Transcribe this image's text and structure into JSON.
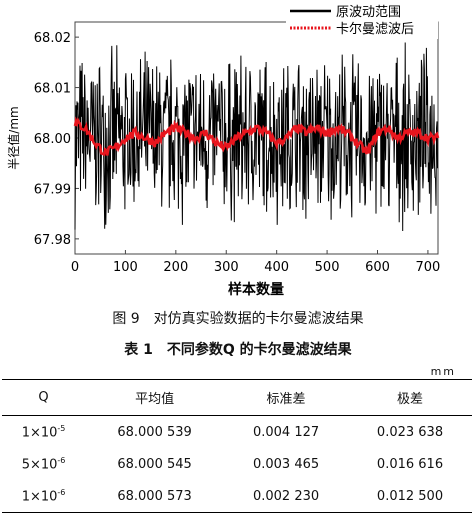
{
  "chart_data": {
    "type": "line",
    "xlabel": "样本数量",
    "ylabel": "半径值/mm",
    "xlim": [
      0,
      720
    ],
    "ylim": [
      67.977,
      68.023
    ],
    "xticks": [
      "0",
      "100",
      "200",
      "300",
      "400",
      "500",
      "600",
      "700"
    ],
    "yticks": [
      "68.02",
      "68.01",
      "68.00",
      "67.99",
      "67.98"
    ],
    "legend_position": "top-right",
    "grid": false,
    "series": [
      {
        "name": "原波动范围",
        "color": "#000000",
        "style": "solid",
        "mean": 68.0,
        "range": [
          67.981,
          68.019
        ],
        "n": 720
      },
      {
        "name": "卡尔曼滤波后",
        "color": "#e8161e",
        "style": "dotted",
        "x": [
          0,
          20,
          40,
          60,
          80,
          100,
          120,
          140,
          160,
          180,
          200,
          220,
          240,
          260,
          280,
          300,
          320,
          340,
          360,
          380,
          400,
          420,
          440,
          460,
          480,
          500,
          520,
          540,
          560,
          580,
          600,
          620,
          640,
          660,
          680,
          700,
          720
        ],
        "y": [
          68.003,
          68.002,
          67.999,
          67.997,
          67.998,
          68.0,
          68.001,
          68.0,
          67.999,
          68.001,
          68.002,
          68.001,
          68.0,
          68.001,
          67.999,
          67.998,
          68.0,
          68.001,
          68.002,
          68.001,
          67.999,
          68.0,
          68.002,
          68.001,
          68.002,
          68.001,
          68.002,
          68.001,
          67.999,
          67.997,
          68.001,
          68.002,
          68.0,
          68.001,
          68.001,
          68.0,
          68.0
        ]
      }
    ]
  },
  "figure_caption": "图 9　对仿真实验数据的卡尔曼滤波结果",
  "table_caption": "表 1　不同参数Q 的卡尔曼滤波结果",
  "table_unit": "mm",
  "table": {
    "headers": [
      "Q",
      "平均值",
      "标准差",
      "极差"
    ],
    "rows": [
      {
        "q_base": "1×10",
        "q_exp": "-5",
        "mean": "68.000 539",
        "std": "0.004 127",
        "range": "0.023 638"
      },
      {
        "q_base": "5×10",
        "q_exp": "-6",
        "mean": "68.000 545",
        "std": "0.003 465",
        "range": "0.016 616"
      },
      {
        "q_base": "1×10",
        "q_exp": "-6",
        "mean": "68.000 573",
        "std": "0.002 230",
        "range": "0.012 500"
      }
    ]
  }
}
